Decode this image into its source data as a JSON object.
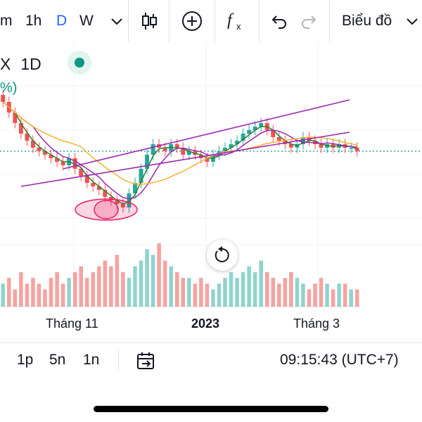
{
  "toolbar": {
    "intervals": [
      "m",
      "1h",
      "D",
      "W"
    ],
    "active_interval": "D",
    "chart_type_label": "Biểu đồ",
    "icons": [
      "chevron-down-icon",
      "candlestick-icon",
      "add-circle-icon",
      "function-icon",
      "undo-icon",
      "redo-icon"
    ]
  },
  "symbol": {
    "name": "X",
    "interval": "1D",
    "change_partial": "%)"
  },
  "x_axis": {
    "labels": [
      "Tháng 11",
      "2023",
      "Tháng 3"
    ]
  },
  "bottom_bar": {
    "ranges": [
      "1p",
      "5n",
      "1n"
    ],
    "time": "09:15:43 (UTC+7)",
    "icons": [
      "goto-date-icon"
    ]
  },
  "colors": {
    "up": "#26a69a",
    "down": "#ef5350",
    "vol_up": "#8fd4cc",
    "vol_down": "#f5a3a1",
    "ma_fast": "#2e7d32",
    "ma_mid": "#9c27b0",
    "ma_slow": "#f9b233",
    "trendline": "#9c27b0",
    "accent": "#2962ff",
    "last_price_line": "#089981"
  },
  "chart_data": {
    "type": "candlestick",
    "x_axis_labels": [
      "Tháng 11",
      "2023",
      "Tháng 3"
    ],
    "series": [
      {
        "name": "",
        "kind": "ohlc",
        "close_trend": [
          10.5,
          10.2,
          9.9,
          9.6,
          9.4,
          9.2,
          9.1,
          9.0,
          8.9,
          8.8,
          8.7,
          8.9,
          8.6,
          8.4,
          8.2,
          8.1,
          8.0,
          7.8,
          7.7,
          7.6,
          7.5,
          7.9,
          8.2,
          8.6,
          9.0,
          9.3,
          9.2,
          9.1,
          9.3,
          9.2,
          9.0,
          9.1,
          9.0,
          8.9,
          8.8,
          9.0,
          9.1,
          9.2,
          9.3,
          9.4,
          9.6,
          9.7,
          9.8,
          9.9,
          9.7,
          9.5,
          9.4,
          9.3,
          9.2,
          9.3,
          9.5,
          9.4,
          9.3,
          9.2,
          9.3,
          9.2,
          9.3,
          9.2,
          9.2,
          9.1
        ]
      },
      {
        "name": "",
        "kind": "ma",
        "color": "#2e7d32"
      },
      {
        "name": "",
        "kind": "ma",
        "color": "#9c27b0"
      },
      {
        "name": "",
        "kind": "ma",
        "color": "#f9b233"
      }
    ],
    "volume": [
      4,
      5,
      3,
      6,
      4,
      5,
      4,
      3,
      5,
      6,
      4,
      5,
      6,
      7,
      5,
      6,
      7,
      8,
      7,
      9,
      6,
      5,
      7,
      8,
      10,
      9,
      11,
      8,
      7,
      6,
      5,
      5,
      4,
      5,
      4,
      3,
      4,
      5,
      6,
      5,
      6,
      7,
      6,
      8,
      6,
      5,
      4,
      5,
      6,
      5,
      4,
      3,
      4,
      5,
      4,
      3,
      4,
      4,
      3,
      3
    ],
    "annotations": [
      "ascending-channel",
      "highlighted-low-ellipse"
    ]
  }
}
